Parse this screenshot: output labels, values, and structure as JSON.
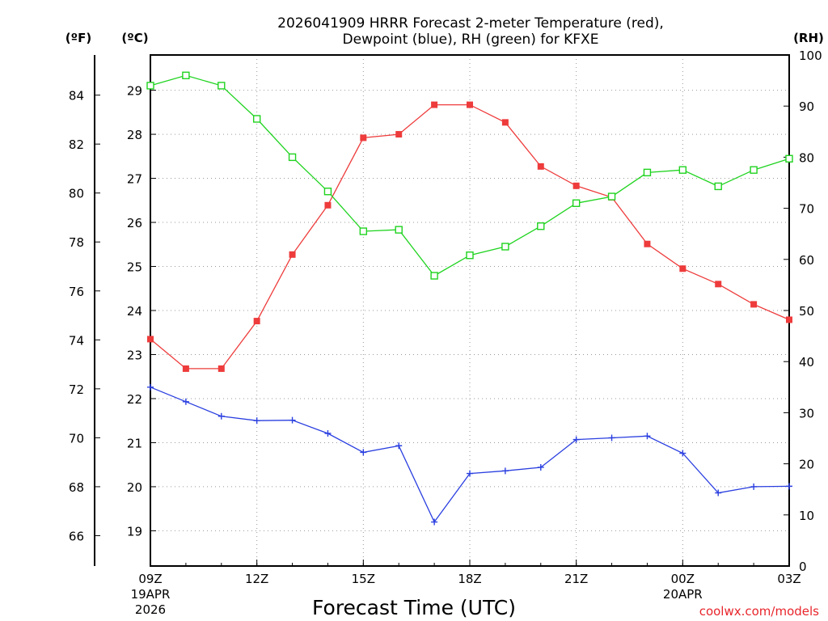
{
  "chart_data": {
    "type": "line",
    "title": [
      "2026041909 HRRR Forecast 2-meter Temperature (red),",
      "Dewpoint (blue), RH (green) for KFXE"
    ],
    "xlabel": "Forecast Time (UTC)",
    "credit": "coolwx.com/models",
    "units": {
      "fahrenheit": "(ºF)",
      "celsius": "(ºC)",
      "rh": "(RH)"
    },
    "x_hours": [
      0,
      1,
      2,
      3,
      4,
      5,
      6,
      7,
      8,
      9,
      10,
      11,
      12,
      13,
      14,
      15,
      16,
      17,
      18
    ],
    "x_ticks": [
      {
        "hour": 0,
        "lines": [
          "09Z",
          "19APR",
          "2026"
        ]
      },
      {
        "hour": 3,
        "lines": [
          "12Z"
        ]
      },
      {
        "hour": 6,
        "lines": [
          "15Z"
        ]
      },
      {
        "hour": 9,
        "lines": [
          "18Z"
        ]
      },
      {
        "hour": 12,
        "lines": [
          "21Z"
        ]
      },
      {
        "hour": 15,
        "lines": [
          "00Z",
          "20APR"
        ]
      },
      {
        "hour": 18,
        "lines": [
          "03Z"
        ]
      }
    ],
    "celsius_axis": {
      "range": [
        18.2,
        29.8
      ],
      "ticks": [
        19,
        20,
        21,
        22,
        23,
        24,
        25,
        26,
        27,
        28,
        29
      ]
    },
    "fahrenheit_axis": {
      "ticks": [
        66,
        68,
        70,
        72,
        74,
        76,
        78,
        80,
        82,
        84
      ]
    },
    "rh_axis": {
      "range": [
        0,
        100
      ],
      "ticks": [
        0,
        10,
        20,
        30,
        40,
        50,
        60,
        70,
        80,
        90,
        100
      ]
    },
    "colors": {
      "temperature": "#ee3b3b",
      "dewpoint": "#2a3fe0",
      "rh": "#1fd31f"
    },
    "series": [
      {
        "name": "Temperature",
        "axis": "celsius",
        "marker": "filled-square",
        "values": [
          23.35,
          22.68,
          22.68,
          23.76,
          25.27,
          26.39,
          27.92,
          28.0,
          28.67,
          28.67,
          28.27,
          27.27,
          26.83,
          26.57,
          25.51,
          24.95,
          24.6,
          24.14,
          23.79
        ]
      },
      {
        "name": "Dewpoint",
        "axis": "celsius",
        "marker": "plus",
        "values": [
          22.26,
          21.93,
          21.6,
          21.5,
          21.51,
          21.21,
          20.78,
          20.93,
          19.2,
          20.3,
          20.36,
          20.44,
          21.07,
          21.11,
          21.15,
          20.76,
          19.86,
          20.0,
          20.01
        ]
      },
      {
        "name": "RH",
        "axis": "rh",
        "marker": "open-square",
        "values": [
          94,
          96,
          94,
          87.5,
          80,
          73.3,
          65.5,
          65.8,
          56.8,
          60.8,
          62.5,
          66.5,
          71,
          72.3,
          77,
          77.5,
          74.3,
          77.5,
          79.7
        ]
      }
    ]
  }
}
